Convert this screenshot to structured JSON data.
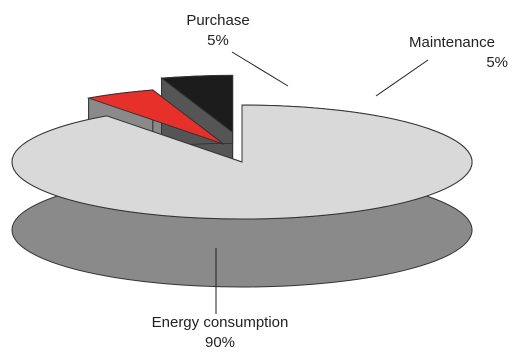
{
  "chart_data": {
    "type": "pie",
    "style": "3d-exploded",
    "slices": [
      {
        "label": "Energy consumption",
        "value_label": "90%",
        "value": 90,
        "color": "#d9d9d9",
        "side_color": "#8a8a8a"
      },
      {
        "label": "Purchase",
        "value_label": "5%",
        "value": 5,
        "color": "#e8302a",
        "side_color": "#8a8a8a"
      },
      {
        "label": "Maintenance",
        "value_label": "5%",
        "value": 5,
        "color": "#1c1c1c",
        "side_color": "#555555"
      }
    ]
  }
}
